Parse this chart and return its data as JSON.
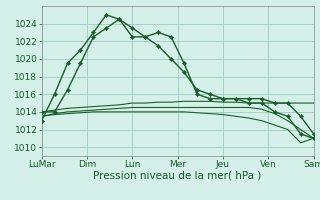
{
  "bg_color": "#d4f0e8",
  "grid_color": "#a0ccc0",
  "line_color": "#1a5e2a",
  "marker_color": "#1a5e2a",
  "xlabel": "Pression niveau de la mer( hPa )",
  "xlabel_fontsize": 7.5,
  "tick_fontsize": 6.5,
  "ylim": [
    1009,
    1026
  ],
  "yticks": [
    1010,
    1012,
    1014,
    1016,
    1018,
    1020,
    1022,
    1024
  ],
  "xtick_labels": [
    "LuMar",
    "Dim",
    "Lun",
    "Mer",
    "Jeu",
    "Ven",
    "Sam"
  ],
  "n_points": 22,
  "series": [
    [
      1013.0,
      1016.0,
      1019.5,
      1021.0,
      1023.0,
      1025.0,
      1024.5,
      1023.5,
      1022.5,
      1021.5,
      1020.0,
      1018.5,
      1016.5,
      1016.0,
      1015.5,
      1015.5,
      1015.0,
      1015.0,
      1014.0,
      1013.5,
      1011.5,
      1011.0
    ],
    [
      1014.0,
      1014.0,
      1016.5,
      1019.5,
      1022.5,
      1023.5,
      1024.5,
      1022.5,
      1022.5,
      1023.0,
      1022.5,
      1019.5,
      1016.0,
      1015.5,
      1015.5,
      1015.5,
      1015.5,
      1015.5,
      1015.0,
      1015.0,
      1013.5,
      1011.5
    ],
    [
      1014.0,
      1014.2,
      1014.4,
      1014.5,
      1014.6,
      1014.7,
      1014.8,
      1015.0,
      1015.0,
      1015.1,
      1015.1,
      1015.2,
      1015.2,
      1015.2,
      1015.1,
      1015.1,
      1015.0,
      1015.0,
      1015.0,
      1015.0,
      1015.0,
      1015.0
    ],
    [
      1013.5,
      1013.8,
      1014.0,
      1014.1,
      1014.2,
      1014.3,
      1014.4,
      1014.5,
      1014.5,
      1014.5,
      1014.5,
      1014.5,
      1014.5,
      1014.5,
      1014.5,
      1014.5,
      1014.5,
      1014.3,
      1013.8,
      1013.0,
      1012.0,
      1011.0
    ],
    [
      1013.5,
      1013.7,
      1013.8,
      1013.9,
      1014.0,
      1014.0,
      1014.0,
      1014.0,
      1014.0,
      1014.0,
      1014.0,
      1014.0,
      1013.9,
      1013.8,
      1013.7,
      1013.5,
      1013.3,
      1013.0,
      1012.5,
      1012.0,
      1010.5,
      1011.0
    ]
  ]
}
